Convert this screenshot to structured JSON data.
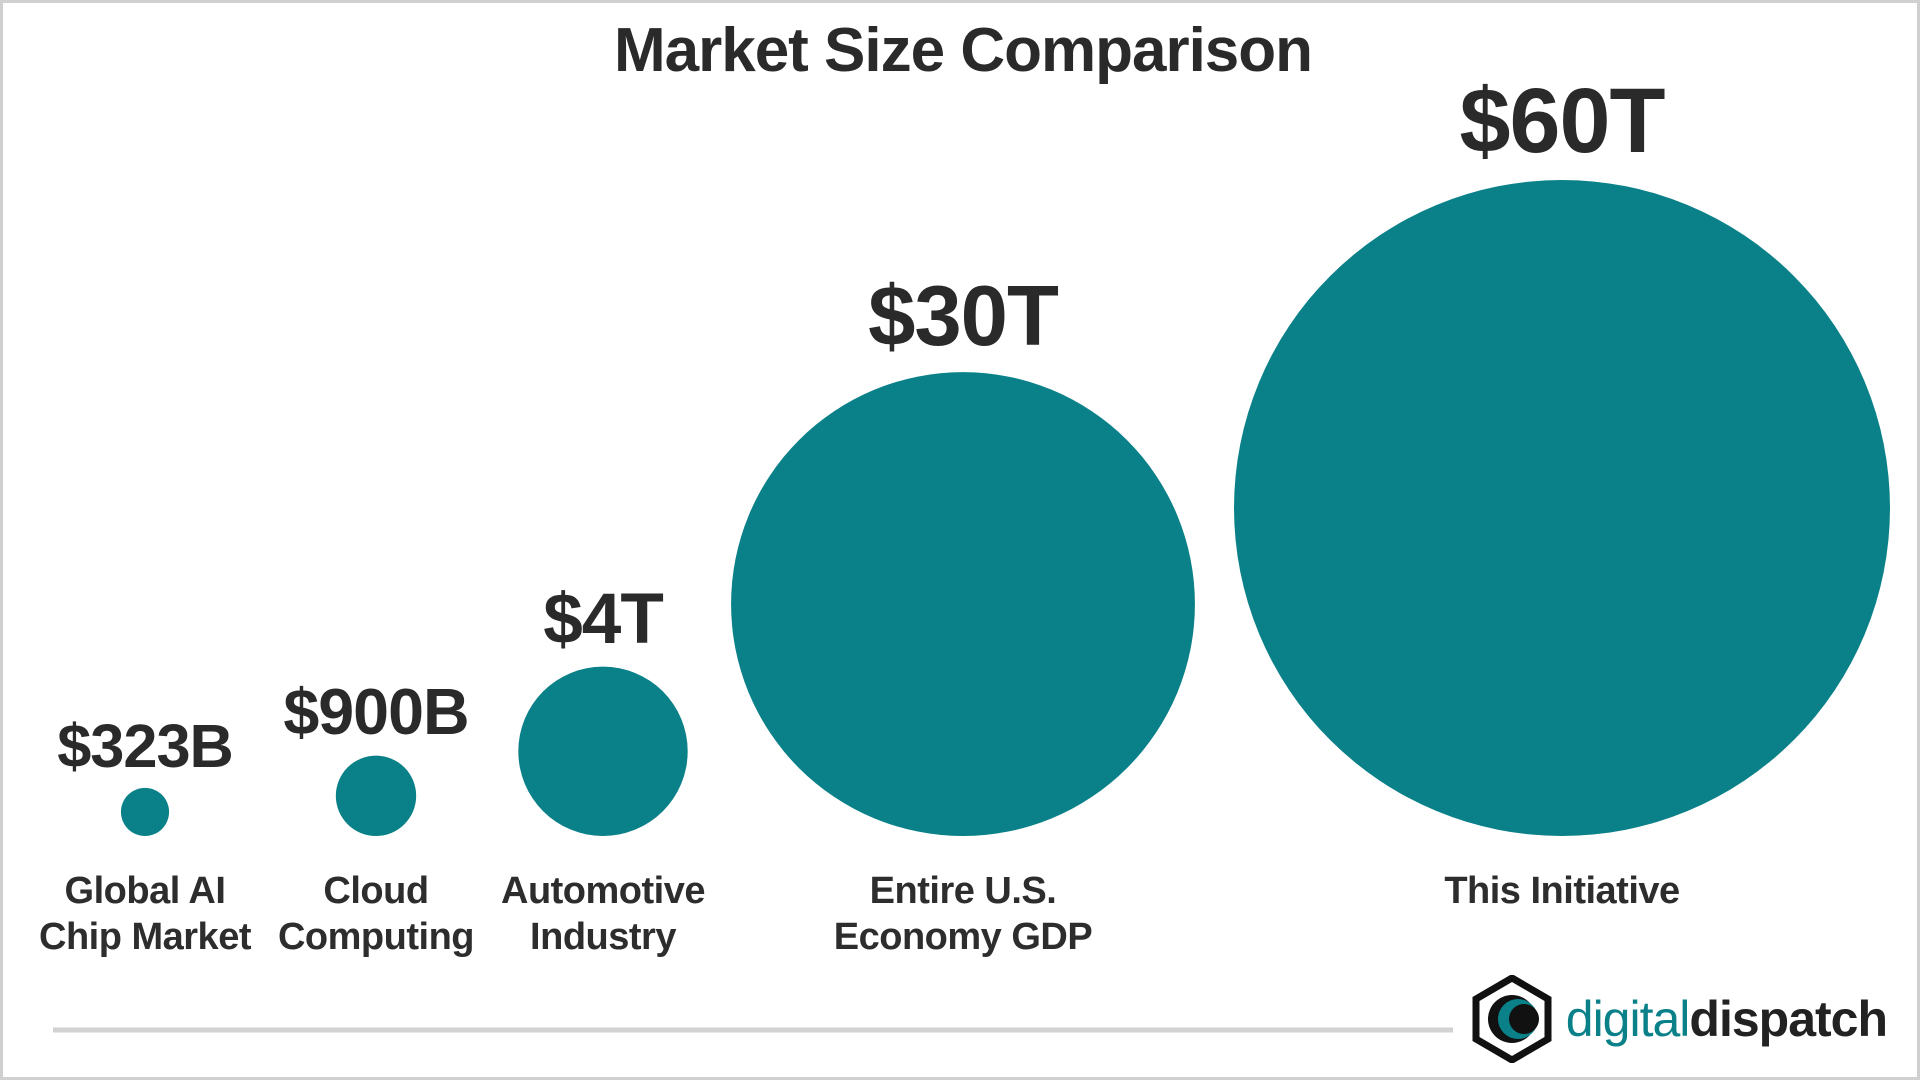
{
  "chart_data": {
    "type": "bubble",
    "title": "Market Size Comparison",
    "categories": [
      "Global AI\nChip Market",
      "Cloud\nComputing",
      "Automotive\nIndustry",
      "Entire U.S.\nEconomy GDP",
      "This Initiative"
    ],
    "values": [
      323000000000,
      900000000000,
      4000000000000,
      30000000000000,
      60000000000000
    ],
    "value_labels": [
      "$323B",
      "$900B",
      "$4T",
      "$30T",
      "$60T"
    ],
    "color": "#0a8088"
  },
  "branding": {
    "logo_light": "digital",
    "logo_bold": "dispatch"
  }
}
